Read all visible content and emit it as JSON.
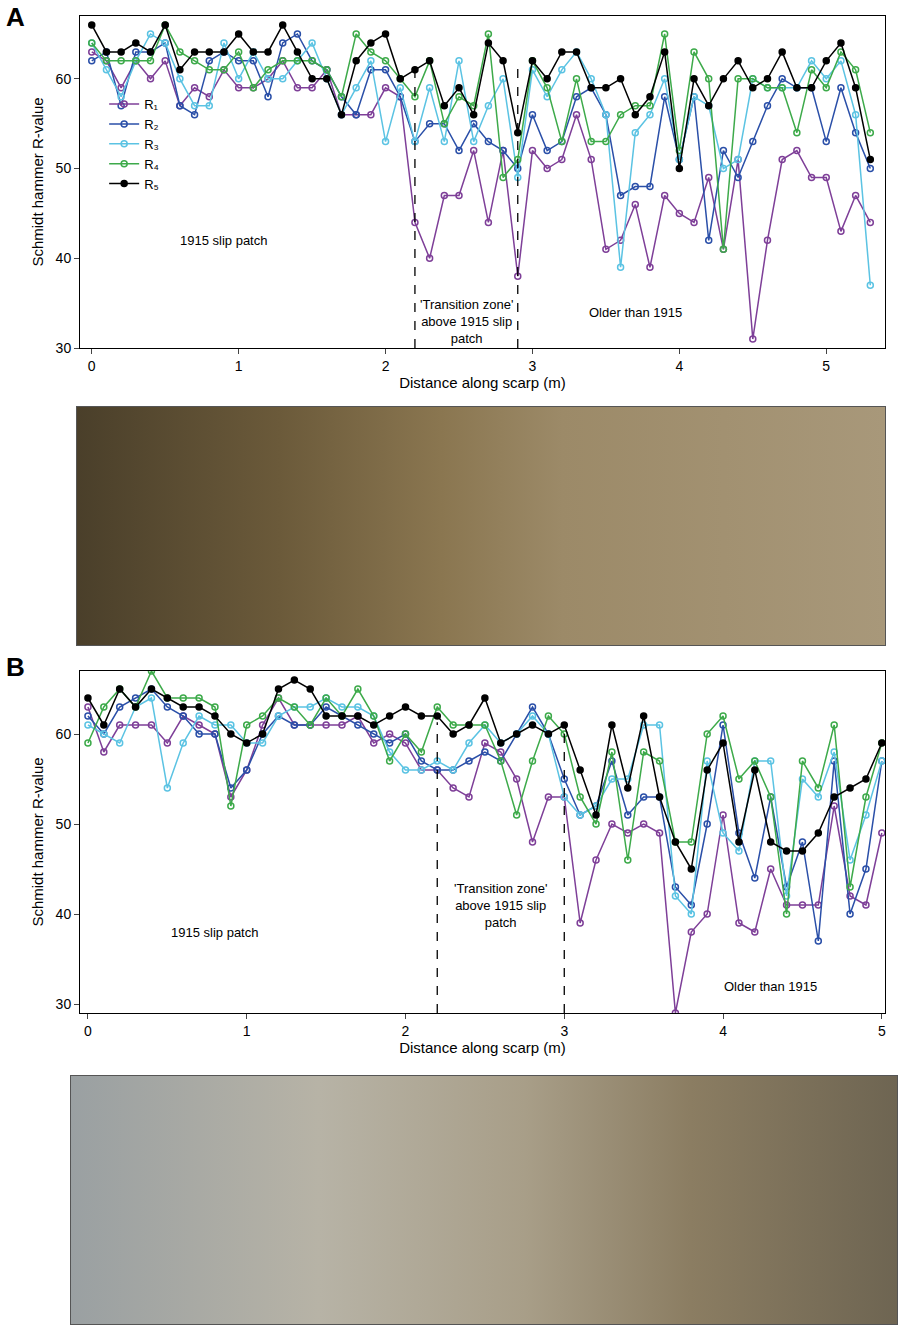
{
  "chart_data": [
    {
      "type": "line",
      "letter": "A",
      "x_label": "Distance along scarp (m)",
      "y_label": "Schmidt hammer R-value",
      "x": [
        0,
        0.1,
        0.2,
        0.3,
        0.4,
        0.5,
        0.6,
        0.7,
        0.8,
        0.9,
        1.0,
        1.1,
        1.2,
        1.3,
        1.4,
        1.5,
        1.6,
        1.7,
        1.8,
        1.9,
        2.0,
        2.1,
        2.2,
        2.3,
        2.4,
        2.5,
        2.6,
        2.7,
        2.8,
        2.9,
        3.0,
        3.1,
        3.2,
        3.3,
        3.4,
        3.5,
        3.6,
        3.7,
        3.8,
        3.9,
        4.0,
        4.1,
        4.2,
        4.3,
        4.4,
        4.5,
        4.6,
        4.7,
        4.8,
        4.9,
        5.0,
        5.1,
        5.2,
        5.3
      ],
      "xlim": [
        -0.08,
        5.4
      ],
      "xticks": [
        0,
        1,
        2,
        3,
        4,
        5
      ],
      "ylim": [
        30,
        67
      ],
      "yticks": [
        30,
        40,
        50,
        60
      ],
      "legend": "top left",
      "series": [
        {
          "name": "R₁",
          "color": "#7e3f98",
          "marker": "open",
          "values": [
            63,
            62,
            59,
            62,
            60,
            62,
            57,
            59,
            58,
            61,
            59,
            59,
            60,
            62,
            59,
            59,
            61,
            56,
            56,
            56,
            59,
            58,
            44,
            40,
            47,
            47,
            52,
            44,
            52,
            38,
            52,
            50,
            51,
            56,
            51,
            41,
            42,
            46,
            39,
            47,
            45,
            44,
            49,
            41,
            51,
            31,
            42,
            51,
            52,
            49,
            49,
            43,
            47,
            44
          ]
        },
        {
          "name": "R₂",
          "color": "#2a4fa8",
          "marker": "open",
          "values": [
            62,
            63,
            57,
            63,
            63,
            64,
            57,
            56,
            62,
            63,
            62,
            62,
            58,
            64,
            65,
            62,
            61,
            58,
            56,
            61,
            61,
            58,
            53,
            55,
            55,
            52,
            55,
            53,
            52,
            50,
            56,
            52,
            53,
            58,
            59,
            56,
            47,
            48,
            48,
            58,
            51,
            58,
            42,
            52,
            49,
            53,
            57,
            60,
            59,
            59,
            53,
            59,
            54,
            50
          ]
        },
        {
          "name": "R₃",
          "color": "#5bc3e3",
          "marker": "open",
          "values": [
            64,
            61,
            58,
            62,
            65,
            64,
            60,
            57,
            57,
            64,
            60,
            63,
            60,
            60,
            62,
            64,
            60,
            56,
            59,
            62,
            53,
            59,
            53,
            59,
            53,
            62,
            53,
            57,
            60,
            49,
            61,
            58,
            61,
            63,
            60,
            56,
            39,
            54,
            56,
            60,
            51,
            58,
            57,
            50,
            51,
            60,
            59,
            59,
            59,
            62,
            60,
            62,
            56,
            37
          ]
        },
        {
          "name": "R₄",
          "color": "#3daa4a",
          "marker": "open",
          "values": [
            64,
            62,
            62,
            62,
            62,
            66,
            63,
            62,
            61,
            61,
            63,
            59,
            61,
            62,
            62,
            62,
            61,
            58,
            65,
            63,
            62,
            60,
            58,
            62,
            55,
            58,
            57,
            65,
            49,
            51,
            62,
            59,
            53,
            60,
            53,
            53,
            56,
            57,
            57,
            65,
            52,
            63,
            60,
            41,
            60,
            60,
            59,
            59,
            54,
            61,
            59,
            63,
            61,
            54
          ]
        },
        {
          "name": "R₅",
          "color": "#000000",
          "marker": "filled",
          "values": [
            66,
            63,
            63,
            64,
            63,
            66,
            61,
            63,
            63,
            63,
            65,
            63,
            63,
            66,
            63,
            60,
            60,
            56,
            62,
            64,
            65,
            60,
            61,
            62,
            57,
            59,
            56,
            64,
            62,
            54,
            62,
            60,
            63,
            63,
            59,
            59,
            60,
            56,
            58,
            63,
            50,
            60,
            57,
            60,
            62,
            59,
            60,
            63,
            59,
            59,
            62,
            64,
            59,
            51
          ]
        }
      ],
      "vlines": [
        2.2,
        2.9
      ],
      "annotations": [
        {
          "text": "1915 slip patch",
          "x": 0.9,
          "y": 42
        },
        {
          "text": "'Transition zone' above 1915 slip patch",
          "x": 2.55,
          "y": 33
        },
        {
          "text": "Older than 1915",
          "x": 3.7,
          "y": 34
        }
      ]
    },
    {
      "type": "line",
      "letter": "B",
      "x_label": "Distance along scarp (m)",
      "y_label": "Schmidt hammer R-value",
      "x": [
        0,
        0.1,
        0.2,
        0.3,
        0.4,
        0.5,
        0.6,
        0.7,
        0.8,
        0.9,
        1.0,
        1.1,
        1.2,
        1.3,
        1.4,
        1.5,
        1.6,
        1.7,
        1.8,
        1.9,
        2.0,
        2.1,
        2.2,
        2.3,
        2.4,
        2.5,
        2.6,
        2.7,
        2.8,
        2.9,
        3.0,
        3.1,
        3.2,
        3.3,
        3.4,
        3.5,
        3.6,
        3.7,
        3.8,
        3.9,
        4.0,
        4.1,
        4.2,
        4.3,
        4.4,
        4.5,
        4.6,
        4.7,
        4.8,
        4.9,
        5.0
      ],
      "xlim": [
        -0.05,
        5.02
      ],
      "xticks": [
        0,
        1,
        2,
        3,
        4,
        5
      ],
      "ylim": [
        29,
        67
      ],
      "yticks": [
        30,
        40,
        50,
        60
      ],
      "legend": false,
      "series": [
        {
          "name": "R₁",
          "color": "#7e3f98",
          "marker": "open",
          "values": [
            63,
            58,
            61,
            61,
            61,
            59,
            62,
            61,
            60,
            53,
            56,
            61,
            64,
            61,
            61,
            61,
            61,
            62,
            59,
            60,
            59,
            56,
            56,
            54,
            53,
            59,
            58,
            55,
            48,
            53,
            53,
            39,
            46,
            50,
            49,
            50,
            49,
            29,
            38,
            40,
            51,
            39,
            38,
            45,
            41,
            41,
            41,
            52,
            42,
            41,
            49
          ]
        },
        {
          "name": "R₂",
          "color": "#2a4fa8",
          "marker": "open",
          "values": [
            62,
            60,
            63,
            64,
            65,
            63,
            62,
            60,
            60,
            54,
            56,
            60,
            62,
            61,
            61,
            63,
            62,
            61,
            60,
            59,
            60,
            57,
            56,
            56,
            57,
            58,
            57,
            60,
            63,
            60,
            55,
            51,
            52,
            57,
            51,
            53,
            53,
            43,
            41,
            50,
            61,
            49,
            44,
            53,
            43,
            48,
            37,
            57,
            40,
            45,
            57
          ]
        },
        {
          "name": "R₃",
          "color": "#5bc3e3",
          "marker": "open",
          "values": [
            61,
            60,
            59,
            63,
            64,
            54,
            59,
            62,
            61,
            61,
            59,
            59,
            62,
            63,
            63,
            64,
            63,
            63,
            62,
            58,
            56,
            56,
            57,
            56,
            59,
            61,
            59,
            60,
            62,
            60,
            53,
            51,
            52,
            55,
            55,
            61,
            61,
            42,
            40,
            57,
            49,
            47,
            57,
            57,
            42,
            55,
            53,
            58,
            46,
            51,
            57
          ]
        },
        {
          "name": "R₄",
          "color": "#3daa4a",
          "marker": "open",
          "values": [
            59,
            63,
            65,
            63,
            67,
            64,
            64,
            64,
            63,
            52,
            61,
            62,
            64,
            63,
            61,
            64,
            62,
            65,
            62,
            57,
            60,
            58,
            63,
            61,
            61,
            61,
            57,
            51,
            57,
            62,
            60,
            53,
            50,
            58,
            46,
            58,
            57,
            48,
            48,
            60,
            62,
            55,
            57,
            53,
            40,
            57,
            54,
            61,
            43,
            53,
            59
          ]
        },
        {
          "name": "R₅",
          "color": "#000000",
          "marker": "filled",
          "values": [
            64,
            61,
            65,
            63,
            65,
            64,
            63,
            63,
            62,
            60,
            59,
            60,
            65,
            66,
            65,
            62,
            62,
            62,
            61,
            62,
            63,
            62,
            62,
            60,
            61,
            64,
            59,
            60,
            61,
            60,
            61,
            56,
            51,
            61,
            54,
            62,
            53,
            48,
            45,
            56,
            59,
            48,
            56,
            48,
            47,
            47,
            49,
            53,
            54,
            55,
            59
          ]
        }
      ],
      "vlines": [
        2.2,
        3.0
      ],
      "annotations": [
        {
          "text": "1915 slip patch",
          "x": 0.8,
          "y": 38
        },
        {
          "text": "'Transition zone' above 1915 slip patch",
          "x": 2.6,
          "y": 41
        },
        {
          "text": "Older than 1915",
          "x": 4.3,
          "y": 32
        }
      ]
    }
  ]
}
